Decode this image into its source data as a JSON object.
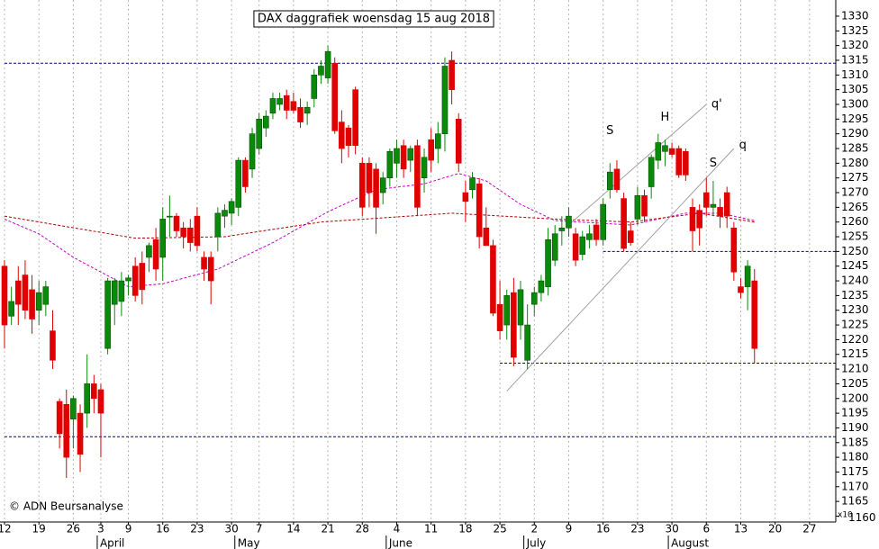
{
  "chart_data": {
    "type": "candlestick",
    "title": "DAX daggrafiek woensdag 15 aug 2018",
    "copyright": "© ADN Beursanalyse",
    "y_axis_note": "x10",
    "up_color": "#0a8a0a",
    "down_color": "#e00000",
    "categories": [
      "12",
      null,
      null,
      null,
      null,
      "19",
      null,
      null,
      null,
      null,
      "26",
      null,
      null,
      null,
      "3",
      null,
      null,
      null,
      "9",
      null,
      null,
      null,
      null,
      "16",
      null,
      null,
      null,
      null,
      "23",
      null,
      null,
      null,
      null,
      "30",
      null,
      null,
      null,
      "7",
      null,
      null,
      null,
      null,
      "14",
      null,
      null,
      null,
      null,
      "21",
      null,
      null,
      null,
      null,
      "28",
      null,
      null,
      null,
      null,
      "4",
      null,
      null,
      null,
      null,
      "11",
      null,
      null,
      null,
      null,
      "18",
      null,
      null,
      null,
      null,
      "25",
      null,
      null,
      null,
      null,
      "2",
      null,
      null,
      null,
      null,
      "9",
      null,
      null,
      null,
      null,
      "16",
      null,
      null,
      null,
      null,
      "23",
      null,
      null,
      null,
      null,
      "30",
      null,
      null,
      null,
      null,
      "6",
      null,
      null,
      null,
      null,
      "13",
      null,
      null,
      null,
      null,
      "20",
      null,
      null,
      null,
      null,
      "27",
      null,
      null
    ],
    "months": [
      null,
      null,
      null,
      null,
      null,
      null,
      null,
      null,
      null,
      null,
      null,
      null,
      null,
      null,
      "April",
      null,
      null,
      null,
      null,
      null,
      null,
      null,
      null,
      null,
      null,
      null,
      null,
      null,
      null,
      null,
      null,
      null,
      null,
      null,
      "May",
      null,
      null,
      null,
      null,
      null,
      null,
      null,
      null,
      null,
      null,
      null,
      null,
      null,
      null,
      null,
      null,
      null,
      null,
      null,
      null,
      null,
      "June",
      null,
      null,
      null,
      null,
      null,
      null,
      null,
      null,
      null,
      null,
      null,
      null,
      null,
      null,
      null,
      null,
      null,
      null,
      null,
      "July",
      null,
      null,
      null,
      null,
      null,
      null,
      null,
      null,
      null,
      null,
      null,
      null,
      null,
      null,
      null,
      null,
      null,
      null,
      null,
      null,
      "August",
      null,
      null,
      null,
      null,
      null,
      null,
      null,
      null,
      null,
      null,
      null,
      null,
      null,
      null,
      null,
      null,
      null,
      null,
      null,
      null
    ],
    "open": [
      1245,
      1228,
      1240,
      1242,
      1237,
      1230,
      1232,
      1223,
      1199,
      1198,
      1193,
      1195,
      1195,
      1205,
      1203,
      1217,
      1232,
      1233,
      1240,
      1245,
      1246,
      1248,
      1254,
      1248,
      1262,
      1262,
      1258,
      1258,
      1262,
      1248,
      1248,
      1255,
      1262,
      1263,
      1265,
      1281,
      1278,
      1285,
      1292,
      1297,
      1300,
      1303,
      1301,
      1299,
      1297,
      1302,
      1310,
      1309,
      1314,
      1294,
      1292,
      1305,
      1280,
      1280,
      1278,
      1270,
      1275,
      1280,
      1286,
      1281,
      1286,
      1275,
      1288,
      1285,
      1290,
      1315,
      1295,
      1270,
      1271,
      1273,
      1258,
      1252,
      1232,
      1225,
      1236,
      1225,
      1213,
      1232,
      1236,
      1238,
      1247,
      1257,
      1258,
      1256,
      1249,
      1254,
      1259,
      1254,
      1271,
      1278,
      1268,
      1257,
      1261,
      1269,
      1272,
      1281,
      1284,
      1285,
      1285,
      1284,
      1265,
      1264,
      1270,
      1265,
      1265,
      1270,
      1258,
      1238,
      1238,
      1240,
      null,
      null,
      null,
      null,
      null,
      null,
      null,
      null,
      null,
      null
    ],
    "high": [
      1247,
      1238,
      1245,
      1247,
      1242,
      1240,
      1240,
      1230,
      1200,
      1203,
      1201,
      1198,
      1215,
      1208,
      1205,
      1241,
      1241,
      1243,
      1242,
      1248,
      1250,
      1253,
      1258,
      1265,
      1269,
      1263,
      1260,
      1261,
      1265,
      1250,
      1250,
      1265,
      1266,
      1268,
      1282,
      1282,
      1292,
      1297,
      1298,
      1304,
      1304,
      1305,
      1304,
      1302,
      1301,
      1312,
      1315,
      1320,
      1316,
      1298,
      1293,
      1306,
      1282,
      1282,
      1280,
      1277,
      1285,
      1288,
      1288,
      1286,
      1288,
      1285,
      1292,
      1294,
      1316,
      1318,
      1297,
      1274,
      1277,
      1275,
      1265,
      1254,
      1240,
      1237,
      1241,
      1240,
      1232,
      1238,
      1242,
      1258,
      1259,
      1262,
      1265,
      1258,
      1257,
      1259,
      1261,
      1268,
      1280,
      1281,
      1270,
      1260,
      1272,
      1271,
      1283,
      1290,
      1288,
      1287,
      1286,
      1285,
      1268,
      1266,
      1275,
      1274,
      1268,
      1272,
      1260,
      1241,
      1247,
      1244,
      null,
      null,
      null,
      null,
      null,
      null,
      null,
      null,
      null,
      null
    ],
    "low": [
      1217,
      1225,
      1225,
      1227,
      1222,
      1225,
      1228,
      1210,
      1183,
      1173,
      1183,
      1175,
      1190,
      1195,
      1180,
      1215,
      1225,
      1228,
      1235,
      1233,
      1232,
      1243,
      1240,
      1240,
      1255,
      1255,
      1251,
      1250,
      1250,
      1240,
      1232,
      1250,
      1258,
      1259,
      1262,
      1270,
      1275,
      1283,
      1289,
      1295,
      1298,
      1295,
      1297,
      1292,
      1293,
      1299,
      1307,
      1307,
      1290,
      1280,
      1282,
      1283,
      1262,
      1265,
      1256,
      1266,
      1272,
      1275,
      1275,
      1277,
      1262,
      1270,
      1277,
      1280,
      1284,
      1300,
      1277,
      1260,
      1268,
      1251,
      1252,
      1228,
      1220,
      1220,
      1211,
      1220,
      1210,
      1228,
      1233,
      1235,
      1245,
      1252,
      1255,
      1245,
      1247,
      1251,
      1252,
      1252,
      1268,
      1270,
      1250,
      1252,
      1259,
      1260,
      1268,
      1278,
      1279,
      1282,
      1275,
      1274,
      1250,
      1252,
      1262,
      1262,
      1258,
      1258,
      1240,
      1234,
      1230,
      1212,
      null,
      null,
      null,
      null,
      null,
      null,
      null,
      null,
      null,
      null
    ],
    "close": [
      1225,
      1233,
      1232,
      1230,
      1227,
      1236,
      1238,
      1213,
      1188,
      1180,
      1200,
      1181,
      1205,
      1200,
      1195,
      1240,
      1240,
      1240,
      1241,
      1235,
      1237,
      1252,
      1244,
      1261,
      1262,
      1257,
      1255,
      1253,
      1252,
      1244,
      1240,
      1263,
      1264,
      1267,
      1281,
      1272,
      1290,
      1295,
      1296,
      1302,
      1302,
      1298,
      1298,
      1294,
      1299,
      1310,
      1313,
      1318,
      1291,
      1285,
      1286,
      1286,
      1265,
      1270,
      1265,
      1275,
      1284,
      1285,
      1278,
      1285,
      1265,
      1282,
      1281,
      1290,
      1313,
      1305,
      1280,
      1267,
      1275,
      1255,
      1252,
      1229,
      1223,
      1235,
      1214,
      1237,
      1225,
      1236,
      1240,
      1254,
      1256,
      1258,
      1262,
      1247,
      1255,
      1256,
      1254,
      1266,
      1277,
      1271,
      1251,
      1253,
      1269,
      1262,
      1282,
      1287,
      1286,
      1283,
      1276,
      1276,
      1257,
      1258,
      1265,
      1266,
      1262,
      1262,
      1243,
      1236,
      1245,
      1217,
      null,
      null,
      null,
      null,
      null,
      null,
      null,
      null,
      null,
      null
    ],
    "moving_averages": [
      {
        "color": "#cc00cc",
        "x": [
          0,
          5,
          10,
          18,
          23,
          31,
          39,
          47,
          54,
          61,
          66,
          70,
          75,
          80,
          91,
          99,
          104,
          109
        ],
        "values": [
          1261,
          1256,
          1248,
          1238,
          1239,
          1244,
          1253,
          1263.5,
          1271,
          1273,
          1276.5,
          1274,
          1266,
          1260.5,
          1259,
          1263,
          1263,
          1260.5
        ]
      },
      {
        "color": "#b00000",
        "x": [
          0,
          19,
          32,
          46,
          65,
          80,
          91,
          101,
          109
        ],
        "values": [
          1262,
          1254.5,
          1255,
          1260,
          1263,
          1261,
          1260,
          1263,
          1260
        ]
      }
    ],
    "levels": [
      {
        "value": 1314,
        "from": 0,
        "color": "#00008b"
      },
      {
        "value": 1250,
        "from": 87,
        "color": "#00008b"
      },
      {
        "value": 1212,
        "from": 72,
        "color": "#00008b"
      },
      {
        "value": 1187,
        "from": 0,
        "color": "#00008b"
      }
    ],
    "trendlines": [
      {
        "x": [
          73,
          106
        ],
        "y": [
          1202.5,
          1285
        ],
        "color": "#a0a0a0"
      },
      {
        "x": [
          82,
          102
        ],
        "y": [
          1259,
          1300
        ],
        "color": "#a0a0a0"
      }
    ],
    "annotations": [
      {
        "label": "S",
        "x": 88,
        "y": 1291,
        "color": "#2020c0"
      },
      {
        "label": "H",
        "x": 96,
        "y": 1295.5,
        "color": "#2020c0"
      },
      {
        "label": "S",
        "x": 103,
        "y": 1280,
        "color": "#2020c0"
      },
      {
        "label": "q'",
        "x": 103.5,
        "y": 1300,
        "color": "#a0a0a0"
      },
      {
        "label": "q",
        "x": 107.3,
        "y": 1286,
        "color": "#a0a0a0"
      }
    ],
    "ylim": [
      1158,
      1335.5
    ],
    "yticks": [
      1160,
      1165,
      1170,
      1175,
      1180,
      1185,
      1190,
      1195,
      1200,
      1205,
      1210,
      1215,
      1220,
      1225,
      1230,
      1235,
      1240,
      1245,
      1250,
      1255,
      1260,
      1265,
      1270,
      1275,
      1280,
      1285,
      1290,
      1295,
      1300,
      1305,
      1310,
      1315,
      1320,
      1325,
      1330
    ],
    "grid": true
  }
}
